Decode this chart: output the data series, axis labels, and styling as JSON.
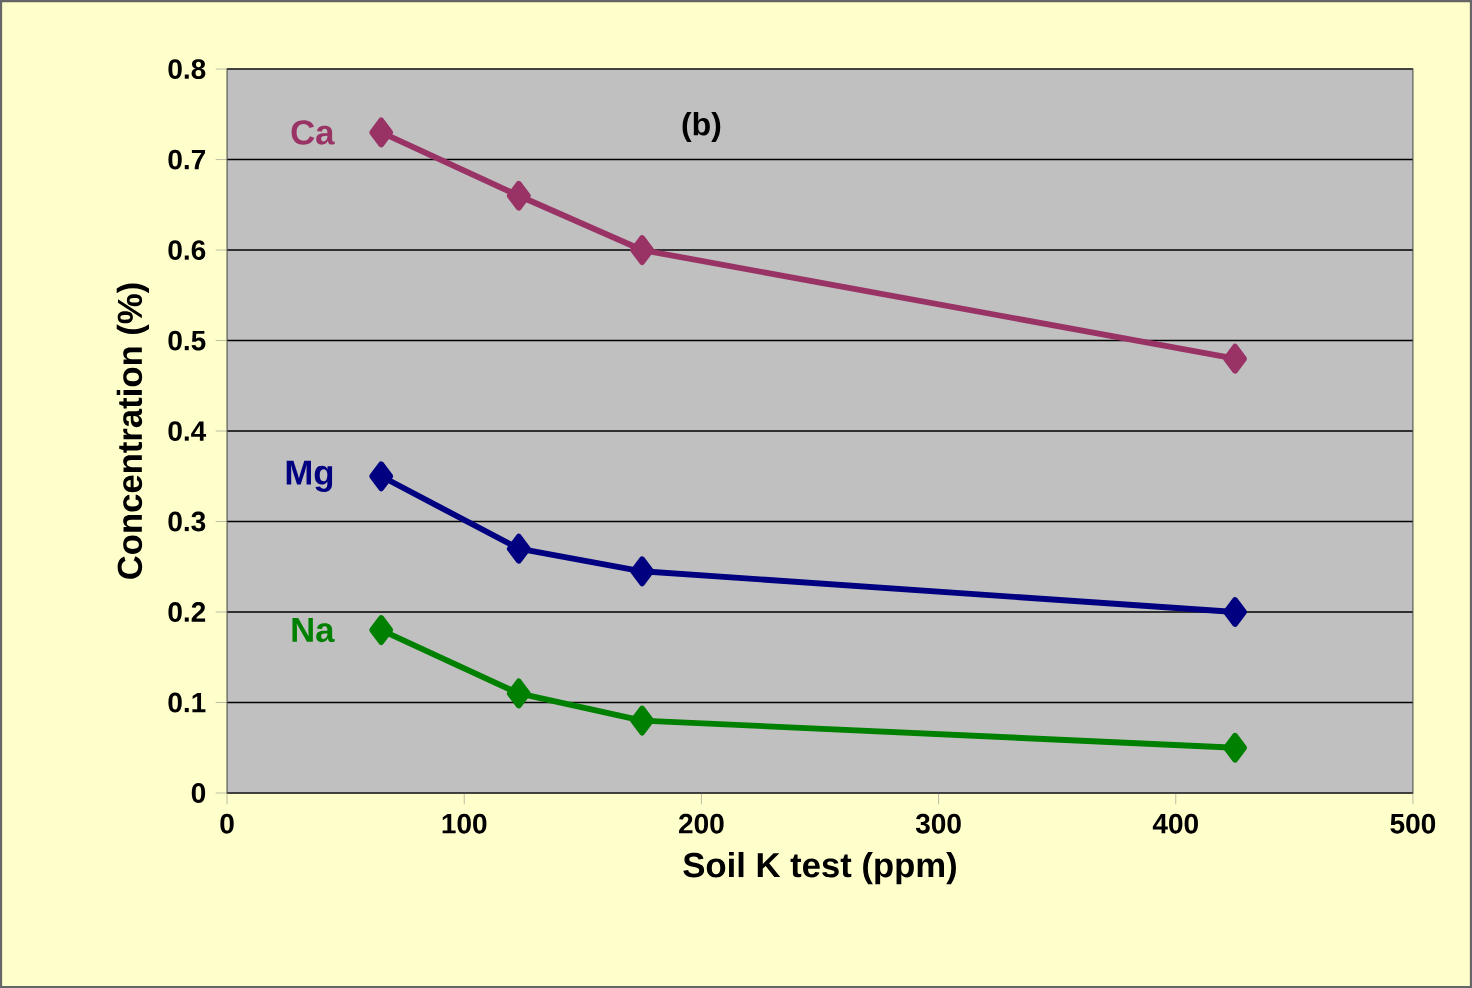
{
  "chart_data": {
    "type": "line",
    "xlabel": "Soil K test (ppm)",
    "ylabel": "Concentration (%)",
    "annotations": [
      "(b)"
    ],
    "x": [
      65,
      123,
      175,
      425
    ],
    "series": [
      {
        "name": "Ca",
        "color": "#993366",
        "values": [
          0.73,
          0.66,
          0.6,
          0.48
        ]
      },
      {
        "name": "Mg",
        "color": "#000080",
        "values": [
          0.35,
          0.27,
          0.245,
          0.2
        ]
      },
      {
        "name": "Na",
        "color": "#008000",
        "values": [
          0.18,
          0.11,
          0.08,
          0.05
        ]
      }
    ],
    "xlim": [
      0,
      500
    ],
    "ylim": [
      0,
      0.8
    ],
    "xticks": [
      0,
      100,
      200,
      300,
      400,
      500
    ],
    "yticks": [
      0,
      0.1,
      0.2,
      0.3,
      0.4,
      0.5,
      0.6,
      0.7,
      0.8
    ],
    "grid": "y",
    "marker": "diamond",
    "line_style": "solid"
  }
}
